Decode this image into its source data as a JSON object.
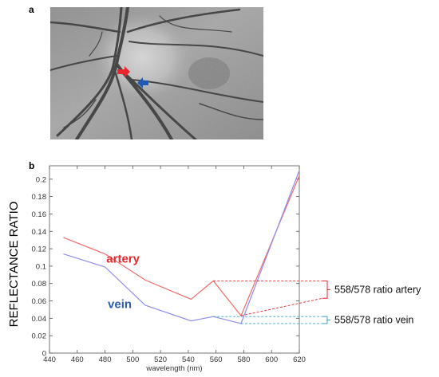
{
  "panel_a": {
    "label": "a"
  },
  "panel_b": {
    "label": "b"
  },
  "colors": {
    "artery": "#f26a6a",
    "vein": "#8f8cf0",
    "artery_text": "#e8262c",
    "vein_text": "#2b5fb0",
    "red_arrow": "#e8262c",
    "blue_arrow": "#1f5bb5",
    "bracket_red": "#e8262c",
    "bracket_blue": "#3aa8c8"
  },
  "chart_data": {
    "type": "line",
    "xlabel": "wavelength (nm)",
    "ylabel": "REFLECTANCE RATIO",
    "xlim": [
      440,
      620
    ],
    "ylim": [
      0,
      0.21
    ],
    "xticks": [
      "440",
      "460",
      "480",
      "500",
      "520",
      "540",
      "560",
      "580",
      "600",
      "620"
    ],
    "yticks": [
      "0",
      "0.02",
      "0.04",
      "0.06",
      "0.08",
      "0.1",
      "0.12",
      "0.14",
      "0.16",
      "0.18",
      "0.2"
    ],
    "series": [
      {
        "name": "artery",
        "x": [
          450,
          480,
          509,
          542,
          558,
          578,
          620
        ],
        "y": [
          0.133,
          0.114,
          0.084,
          0.062,
          0.083,
          0.043,
          0.204
        ]
      },
      {
        "name": "vein",
        "x": [
          450,
          480,
          509,
          542,
          558,
          578,
          620
        ],
        "y": [
          0.114,
          0.099,
          0.055,
          0.037,
          0.042,
          0.034,
          0.21
        ]
      }
    ],
    "annotations": [
      {
        "text": "558/578 ratio artery"
      },
      {
        "text": "558/578 ratio vein"
      }
    ]
  }
}
